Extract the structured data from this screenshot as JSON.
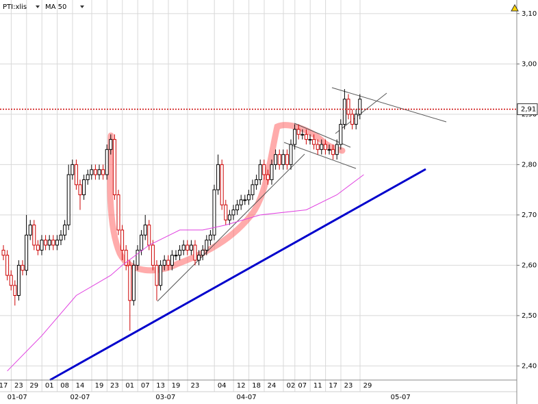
{
  "chart_data": {
    "type": "candlestick",
    "symbol": "PTI:xlis",
    "ylim": [
      2.372,
      3.127
    ],
    "yticks": [
      {
        "value": 3.1,
        "label": "3,10"
      },
      {
        "value": 3.0,
        "label": "3,00"
      },
      {
        "value": 2.9,
        "label": "2,90"
      },
      {
        "value": 2.8,
        "label": "2,80"
      },
      {
        "value": 2.7,
        "label": "2,70"
      },
      {
        "value": 2.6,
        "label": "2,60"
      },
      {
        "value": 2.5,
        "label": "2,50"
      },
      {
        "value": 2.4,
        "label": "2,40"
      }
    ],
    "xticks": [
      {
        "value": 0,
        "label": "17"
      },
      {
        "value": 4,
        "label": "23"
      },
      {
        "value": 8,
        "label": "29"
      },
      {
        "value": 12,
        "label": "01"
      },
      {
        "value": 16,
        "label": "08"
      },
      {
        "value": 20,
        "label": "14"
      },
      {
        "value": 25,
        "label": "19"
      },
      {
        "value": 29,
        "label": "23"
      },
      {
        "value": 33,
        "label": "01"
      },
      {
        "value": 37,
        "label": "07"
      },
      {
        "value": 41,
        "label": "13"
      },
      {
        "value": 45,
        "label": "19"
      },
      {
        "value": 50,
        "label": "23"
      },
      {
        "value": 57,
        "label": "04"
      },
      {
        "value": 62,
        "label": "12"
      },
      {
        "value": 66,
        "label": "18"
      },
      {
        "value": 70,
        "label": "24"
      },
      {
        "value": 75,
        "label": "02"
      },
      {
        "value": 78,
        "label": "07"
      },
      {
        "value": 82,
        "label": "11"
      },
      {
        "value": 86,
        "label": "17"
      },
      {
        "value": 90,
        "label": "23"
      },
      {
        "value": 95,
        "label": "29"
      }
    ],
    "month_ticks": [
      {
        "value": 3.6,
        "label": "01-07"
      },
      {
        "value": 20,
        "label": "02-07"
      },
      {
        "value": 42.3,
        "label": "03-07"
      },
      {
        "value": 63.4,
        "label": "04-07"
      },
      {
        "value": 103.6,
        "label": "05-07"
      }
    ],
    "up_color": "#000000",
    "down_color": "#cc0000",
    "open": [
      2.63,
      2.62,
      2.58,
      2.56,
      2.54,
      2.6,
      2.59,
      2.66,
      2.68,
      2.64,
      2.63,
      2.65,
      2.64,
      2.65,
      2.64,
      2.65,
      2.66,
      2.68,
      2.78,
      2.8,
      2.76,
      2.74,
      2.77,
      2.78,
      2.79,
      2.78,
      2.79,
      2.78,
      2.83,
      2.85,
      2.74,
      2.67,
      2.63,
      2.6,
      2.53,
      2.6,
      2.63,
      2.66,
      2.68,
      2.64,
      2.6,
      2.56,
      2.6,
      2.61,
      2.6,
      2.62,
      2.62,
      2.63,
      2.64,
      2.63,
      2.64,
      2.61,
      2.62,
      2.63,
      2.65,
      2.66,
      2.75,
      2.8,
      2.72,
      2.69,
      2.7,
      2.71,
      2.72,
      2.73,
      2.73,
      2.74,
      2.76,
      2.77,
      2.8,
      2.78,
      2.77,
      2.8,
      2.82,
      2.8,
      2.82,
      2.8,
      2.84,
      2.87,
      2.86,
      2.86,
      2.85,
      2.85,
      2.84,
      2.83,
      2.84,
      2.83,
      2.83,
      2.82,
      2.84,
      2.88,
      2.93,
      2.9,
      2.88,
      2.9
    ],
    "high": [
      2.64,
      2.63,
      2.59,
      2.57,
      2.61,
      2.61,
      2.7,
      2.69,
      2.69,
      2.65,
      2.66,
      2.66,
      2.66,
      2.66,
      2.66,
      2.67,
      2.69,
      2.8,
      2.81,
      2.81,
      2.77,
      2.78,
      2.79,
      2.8,
      2.8,
      2.8,
      2.8,
      2.84,
      2.86,
      2.86,
      2.75,
      2.68,
      2.64,
      2.61,
      2.61,
      2.64,
      2.67,
      2.7,
      2.69,
      2.65,
      2.61,
      2.61,
      2.62,
      2.62,
      2.63,
      2.63,
      2.64,
      2.65,
      2.65,
      2.65,
      2.65,
      2.63,
      2.64,
      2.66,
      2.67,
      2.76,
      2.82,
      2.81,
      2.73,
      2.71,
      2.72,
      2.73,
      2.74,
      2.74,
      2.75,
      2.77,
      2.78,
      2.81,
      2.81,
      2.79,
      2.81,
      2.83,
      2.83,
      2.83,
      2.83,
      2.85,
      2.88,
      2.88,
      2.87,
      2.87,
      2.86,
      2.86,
      2.85,
      2.85,
      2.85,
      2.84,
      2.84,
      2.85,
      2.89,
      2.95,
      2.94,
      2.91,
      2.91,
      2.94
    ],
    "low": [
      2.61,
      2.57,
      2.55,
      2.52,
      2.53,
      2.58,
      2.58,
      2.65,
      2.63,
      2.62,
      2.62,
      2.63,
      2.63,
      2.63,
      2.63,
      2.64,
      2.65,
      2.67,
      2.77,
      2.75,
      2.71,
      2.73,
      2.76,
      2.77,
      2.77,
      2.77,
      2.77,
      2.77,
      2.82,
      2.73,
      2.66,
      2.61,
      2.59,
      2.47,
      2.52,
      2.59,
      2.62,
      2.65,
      2.63,
      2.59,
      2.53,
      2.55,
      2.59,
      2.59,
      2.59,
      2.61,
      2.61,
      2.62,
      2.62,
      2.62,
      2.6,
      2.6,
      2.61,
      2.62,
      2.64,
      2.65,
      2.74,
      2.71,
      2.68,
      2.68,
      2.69,
      2.7,
      2.71,
      2.72,
      2.72,
      2.73,
      2.75,
      2.76,
      2.77,
      2.76,
      2.76,
      2.79,
      2.79,
      2.79,
      2.79,
      2.79,
      2.83,
      2.85,
      2.85,
      2.84,
      2.84,
      2.83,
      2.82,
      2.82,
      2.82,
      2.82,
      2.81,
      2.81,
      2.83,
      2.87,
      2.89,
      2.87,
      2.87,
      2.89
    ],
    "close": [
      2.62,
      2.58,
      2.56,
      2.54,
      2.6,
      2.59,
      2.66,
      2.68,
      2.64,
      2.63,
      2.65,
      2.64,
      2.65,
      2.64,
      2.65,
      2.66,
      2.68,
      2.78,
      2.8,
      2.76,
      2.74,
      2.77,
      2.78,
      2.79,
      2.78,
      2.79,
      2.78,
      2.83,
      2.85,
      2.74,
      2.67,
      2.63,
      2.6,
      2.53,
      2.6,
      2.63,
      2.66,
      2.68,
      2.64,
      2.6,
      2.56,
      2.6,
      2.61,
      2.6,
      2.62,
      2.62,
      2.63,
      2.64,
      2.63,
      2.64,
      2.61,
      2.62,
      2.63,
      2.65,
      2.66,
      2.75,
      2.8,
      2.72,
      2.69,
      2.7,
      2.71,
      2.72,
      2.73,
      2.73,
      2.74,
      2.76,
      2.77,
      2.8,
      2.78,
      2.77,
      2.8,
      2.82,
      2.8,
      2.82,
      2.8,
      2.84,
      2.87,
      2.86,
      2.86,
      2.85,
      2.85,
      2.84,
      2.83,
      2.84,
      2.83,
      2.83,
      2.82,
      2.84,
      2.88,
      2.93,
      2.9,
      2.88,
      2.9,
      2.93
    ],
    "ma": {
      "name": "MA 50",
      "color": "#e040e0",
      "x": [
        1,
        10,
        19,
        28,
        31,
        38,
        46,
        52,
        58,
        67,
        79,
        87,
        94
      ],
      "values": [
        2.39,
        2.46,
        2.54,
        2.58,
        2.6,
        2.64,
        2.67,
        2.67,
        2.68,
        2.7,
        2.71,
        2.74,
        2.78
      ]
    },
    "reference_line": {
      "value": 2.91,
      "label": "2,91",
      "color": "#cc0000"
    }
  }
}
